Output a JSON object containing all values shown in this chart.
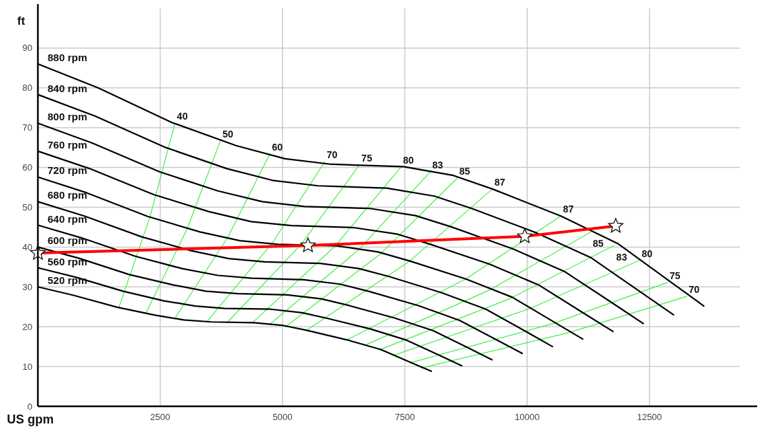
{
  "chart_data": {
    "type": "line",
    "xlabel": "US gpm",
    "ylabel": "ft",
    "xlim": [
      0,
      14700
    ],
    "ylim": [
      0,
      100
    ],
    "xticks": [
      2500,
      5000,
      7500,
      10000,
      12500
    ],
    "yticks": [
      0,
      10,
      20,
      30,
      40,
      50,
      60,
      70,
      80,
      90
    ],
    "grid": true,
    "marker": "none",
    "series": [
      {
        "name": "40",
        "color": "#44ee44",
        "x": [
          2800,
          2291,
          1655
        ],
        "values": [
          71.1,
          47.6,
          24.8
        ]
      },
      {
        "name": "50",
        "color": "#44ee44",
        "x": [
          3730,
          3052,
          2204
        ],
        "values": [
          66.7,
          44.6,
          23.3
        ]
      },
      {
        "name": "60",
        "color": "#44ee44",
        "x": [
          4740,
          3878,
          2801
        ],
        "values": [
          63.4,
          42.4,
          22.1
        ]
      },
      {
        "name": "70",
        "color": "#44ee44",
        "x": [
          5860,
          4795,
          3463
        ],
        "values": [
          61.4,
          41.1,
          21.4
        ]
      },
      {
        "name": "75",
        "color": "#44ee44",
        "x": [
          6570,
          5375,
          3882
        ],
        "values": [
          60.6,
          40.6,
          21.2
        ]
      },
      {
        "name": "80",
        "color": "#44ee44",
        "x": [
          7420,
          6071,
          4385
        ],
        "values": [
          60.1,
          40.2,
          21
        ]
      },
      {
        "name": "83",
        "color": "#44ee44",
        "x": [
          8020,
          6562,
          4739
        ],
        "values": [
          58.9,
          39.4,
          20.6
        ]
      },
      {
        "name": "85",
        "color": "#44ee44",
        "x": [
          8570,
          7012,
          5064
        ],
        "values": [
          57.3,
          38.4,
          20
        ]
      },
      {
        "name": "87",
        "color": "#44ee44",
        "x": [
          9290,
          7601,
          5490
        ],
        "values": [
          54.6,
          36.5,
          19.1
        ]
      },
      {
        "name": "87",
        "color": "#44ee44",
        "x": [
          10690,
          8746,
          6317
        ],
        "values": [
          47.8,
          32,
          16.7
        ]
      },
      {
        "name": "85",
        "color": "#44ee44",
        "x": [
          11300,
          9246,
          6677
        ],
        "values": [
          43.8,
          29.3,
          15.3
        ]
      },
      {
        "name": "83",
        "color": "#44ee44",
        "x": [
          11780,
          9638,
          6961
        ],
        "values": [
          40.4,
          27,
          14.1
        ]
      },
      {
        "name": "80",
        "color": "#44ee44",
        "x": [
          12300,
          10064,
          7268
        ],
        "values": [
          36.7,
          24.6,
          12.8
        ]
      },
      {
        "name": "75",
        "color": "#44ee44",
        "x": [
          12870,
          10530,
          7605
        ],
        "values": [
          31.1,
          20.8,
          10.9
        ]
      },
      {
        "name": "70",
        "color": "#44ee44",
        "x": [
          13260,
          10849,
          7835
        ],
        "values": [
          27.6,
          18.5,
          9.6
        ]
      },
      {
        "name": "880 rpm",
        "color": "#000000",
        "x": [
          0,
          1230,
          2740,
          4050,
          5050,
          6000,
          7470,
          8490,
          9290,
          10690,
          11850,
          12870,
          13610
        ],
        "values": [
          86,
          80,
          71.3,
          65.5,
          62.2,
          60.8,
          60.2,
          58,
          54.6,
          47.8,
          40.9,
          31.8,
          25.2
        ]
      },
      {
        "name": "840 rpm",
        "color": "#000000",
        "x": [
          0,
          1174,
          2615,
          3866,
          4820,
          5727,
          7130,
          8104,
          8868,
          10204,
          11311,
          12285,
          12991
        ],
        "values": [
          78.3,
          72.9,
          65,
          59.7,
          56.7,
          55.4,
          54.8,
          52.8,
          49.7,
          43.5,
          37.3,
          29,
          23
        ]
      },
      {
        "name": "800 rpm",
        "color": "#000000",
        "x": [
          0,
          1118,
          2491,
          3682,
          4591,
          5455,
          6791,
          7718,
          8445,
          9718,
          10773,
          11700,
          12373
        ],
        "values": [
          71.1,
          66.1,
          58.9,
          54.1,
          51.4,
          50.2,
          49.7,
          47.9,
          45.1,
          39.5,
          33.8,
          26.3,
          20.8
        ]
      },
      {
        "name": "760 rpm",
        "color": "#000000",
        "x": [
          0,
          1062,
          2366,
          3498,
          4361,
          5182,
          6451,
          7333,
          8023,
          9232,
          10234,
          11115,
          11754
        ],
        "values": [
          64.1,
          59.7,
          53.2,
          48.9,
          46.4,
          45.4,
          44.9,
          43.3,
          40.7,
          35.7,
          30.5,
          23.7,
          18.8
        ]
      },
      {
        "name": "720 rpm",
        "color": "#000000",
        "x": [
          0,
          1006,
          2242,
          3314,
          4132,
          4909,
          6112,
          6947,
          7601,
          8746,
          9696,
          10530,
          11135
        ],
        "values": [
          57.6,
          53.6,
          47.7,
          43.8,
          41.6,
          40.7,
          40.3,
          38.8,
          36.5,
          32,
          27.4,
          21.3,
          16.9
        ]
      },
      {
        "name": "680 rpm",
        "color": "#000000",
        "x": [
          0,
          950,
          2117,
          3130,
          3902,
          4636,
          5772,
          6561,
          7179,
          8261,
          9157,
          9945,
          10517
        ],
        "values": [
          51.4,
          47.8,
          42.6,
          39.1,
          37.1,
          36.3,
          35.9,
          34.6,
          32.6,
          28.5,
          24.4,
          19,
          15
        ]
      },
      {
        "name": "640 rpm",
        "color": "#000000",
        "x": [
          0,
          895,
          1993,
          2945,
          3673,
          4364,
          5433,
          6175,
          6756,
          7775,
          8618,
          9360,
          9898
        ],
        "values": [
          45.5,
          42.3,
          37.7,
          34.6,
          32.9,
          32.2,
          31.8,
          30.7,
          28.9,
          25.3,
          21.6,
          16.8,
          13.3
        ]
      },
      {
        "name": "600 rpm",
        "color": "#000000",
        "x": [
          0,
          839,
          1868,
          2761,
          3443,
          4091,
          5093,
          5789,
          6334,
          7289,
          8080,
          8775,
          9280
        ],
        "values": [
          40,
          37.2,
          33.1,
          30.5,
          28.9,
          28.3,
          28,
          27,
          25.4,
          22.2,
          19,
          14.8,
          11.7
        ]
      },
      {
        "name": "560 rpm",
        "color": "#000000",
        "x": [
          0,
          783,
          1744,
          2577,
          3214,
          3818,
          4754,
          5404,
          5912,
          6803,
          7541,
          8190,
          8661
        ],
        "values": [
          34.8,
          32.4,
          28.9,
          26.5,
          25.2,
          24.6,
          24.4,
          23.5,
          22.1,
          19.4,
          16.6,
          12.9,
          10.2
        ]
      },
      {
        "name": "520 rpm",
        "color": "#000000",
        "x": [
          0,
          727,
          1619,
          2393,
          2984,
          3545,
          4414,
          5018,
          5490,
          6317,
          7003,
          7605,
          8042
        ],
        "values": [
          30,
          27.9,
          24.9,
          22.9,
          21.7,
          21.2,
          21,
          20.3,
          19.1,
          16.7,
          14.3,
          11.1,
          8.8
        ]
      },
      {
        "color": "#ff0000",
        "marker": "star",
        "x": [
          0,
          5520,
          9950,
          11810
        ],
        "values": [
          38.5,
          40.4,
          42.7,
          45.3
        ]
      }
    ]
  }
}
